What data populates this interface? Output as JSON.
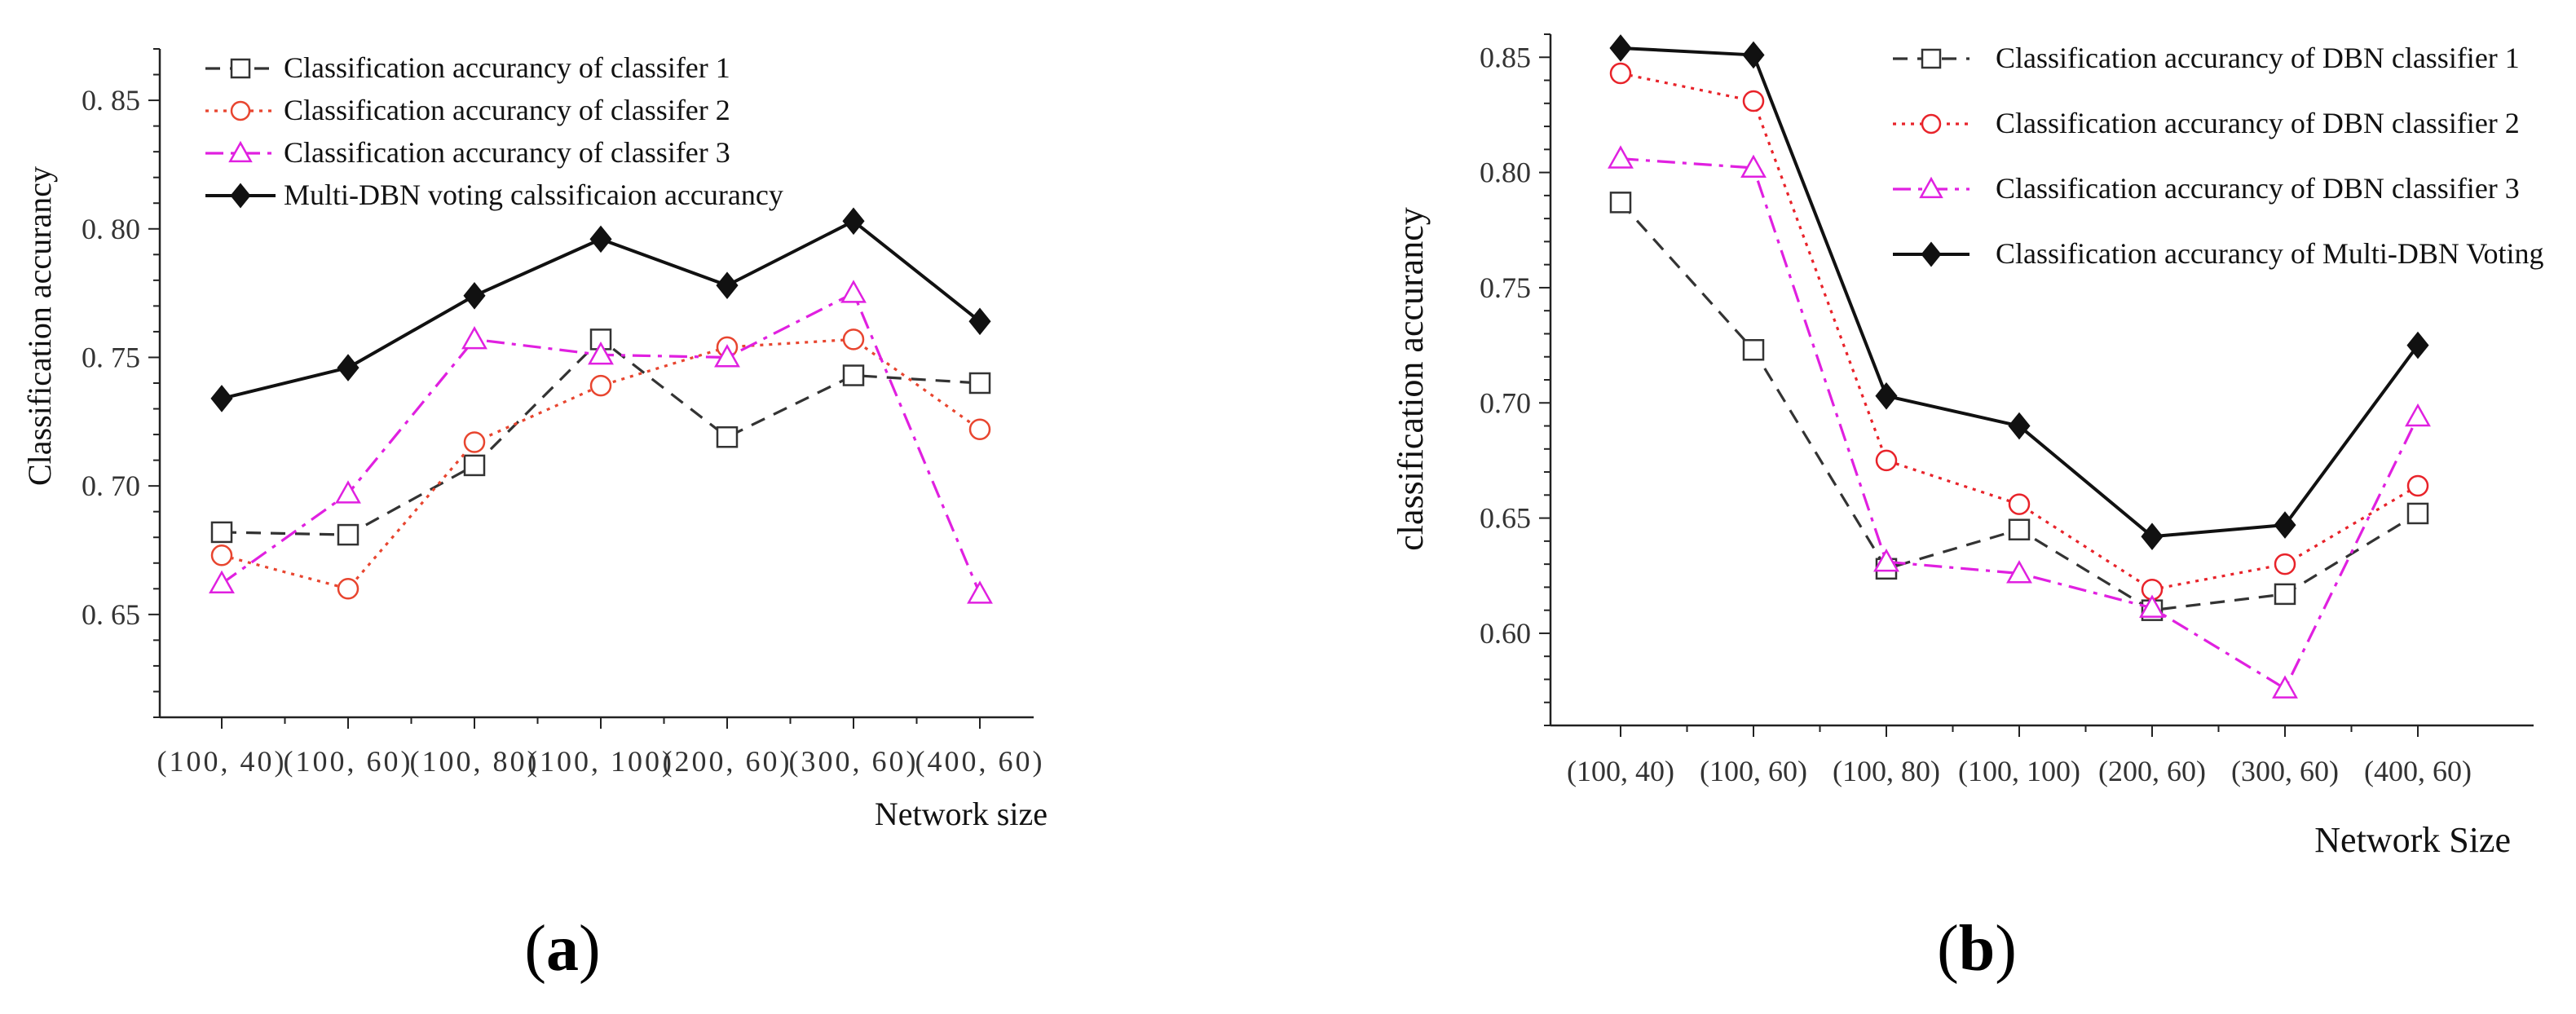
{
  "chart_data": [
    {
      "type": "line",
      "panel_label_prefix": "(",
      "panel_label_letter": "a",
      "panel_label_suffix": ")",
      "xlabel": "Network size",
      "ylabel": "Classification accurancy",
      "ylim": [
        0.61,
        0.87
      ],
      "yticks": [
        0.65,
        0.7,
        0.75,
        0.8,
        0.85
      ],
      "ytick_labels": [
        "0. 65",
        "0. 70",
        "0. 75",
        "0. 80",
        "0. 85"
      ],
      "categories": [
        "(100, 40)",
        "(100, 60)",
        "(100, 80)",
        "(100, 100)",
        "(200, 60)",
        "(300, 60)",
        "(400, 60)"
      ],
      "legend_position": "top-left",
      "series": [
        {
          "name": "Classification accurancy of classifer 1",
          "color": "#333333",
          "marker": "square",
          "line": "dashed",
          "values": [
            0.682,
            0.681,
            0.708,
            0.757,
            0.719,
            0.743,
            0.74
          ]
        },
        {
          "name": "Classification accurancy of classifer 2",
          "color": "#e8452f",
          "marker": "circle",
          "line": "dotted",
          "values": [
            0.673,
            0.66,
            0.717,
            0.739,
            0.754,
            0.757,
            0.722
          ]
        },
        {
          "name": "Classification accurancy of classifer 3",
          "color": "#e020e0",
          "marker": "triangle",
          "line": "dashdot",
          "values": [
            0.662,
            0.697,
            0.757,
            0.751,
            0.75,
            0.775,
            0.658
          ]
        },
        {
          "name": "Multi-DBN voting calssificaion accurancy",
          "color": "#111111",
          "marker": "diamond",
          "line": "solid",
          "values": [
            0.734,
            0.746,
            0.774,
            0.796,
            0.778,
            0.803,
            0.764
          ]
        }
      ]
    },
    {
      "type": "line",
      "panel_label_prefix": "(",
      "panel_label_letter": "b",
      "panel_label_suffix": ")",
      "xlabel": "Network Size",
      "ylabel": "classification accurancy",
      "ylim": [
        0.56,
        0.86
      ],
      "yticks": [
        0.6,
        0.65,
        0.7,
        0.75,
        0.8,
        0.85
      ],
      "ytick_labels": [
        "0.60",
        "0.65",
        "0.70",
        "0.75",
        "0.80",
        "0.85"
      ],
      "categories": [
        "(100, 40)",
        "(100, 60)",
        "(100, 80)",
        "(100, 100)",
        "(200, 60)",
        "(300, 60)",
        "(400, 60)"
      ],
      "legend_position": "top-right",
      "series": [
        {
          "name": "Classification accurancy of DBN classifier 1",
          "color": "#333333",
          "marker": "square",
          "line": "dashed",
          "values": [
            0.787,
            0.723,
            0.628,
            0.645,
            0.61,
            0.617,
            0.652
          ]
        },
        {
          "name": "Classification accurancy of DBN classifier 2",
          "color": "#e8232a",
          "marker": "circle",
          "line": "dotted",
          "values": [
            0.843,
            0.831,
            0.675,
            0.656,
            0.619,
            0.63,
            0.664
          ]
        },
        {
          "name": "Classification accurancy of DBN classifier 3",
          "color": "#e020e0",
          "marker": "triangle",
          "line": "dashdot",
          "values": [
            0.806,
            0.802,
            0.631,
            0.626,
            0.611,
            0.576,
            0.694
          ]
        },
        {
          "name": "Classification accurancy of Multi-DBN Voting",
          "color": "#111111",
          "marker": "diamond",
          "line": "solid",
          "values": [
            0.854,
            0.851,
            0.703,
            0.69,
            0.642,
            0.647,
            0.725
          ]
        }
      ]
    }
  ]
}
